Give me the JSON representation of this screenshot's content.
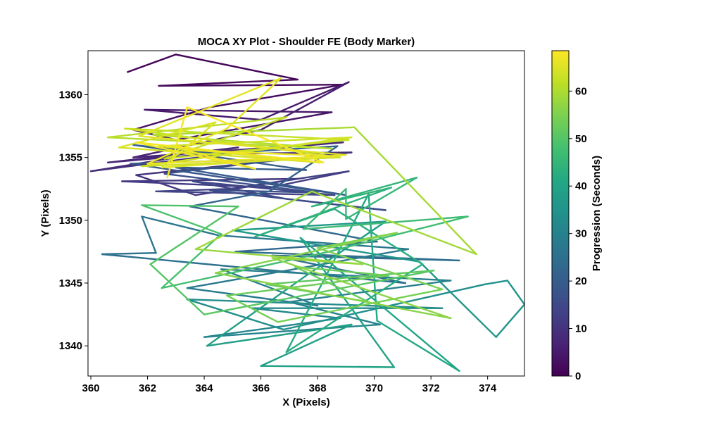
{
  "chart_data": {
    "type": "line",
    "title": "MOCA XY Plot - Shoulder FE (Body Marker)",
    "xlabel": "X (Pixels)",
    "ylabel": "Y (Pixels)",
    "colorbar_label": "Progression (Seconds)",
    "xlim": [
      359.9,
      375.3
    ],
    "ylim": [
      1337.6,
      1363.5
    ],
    "colorbar_range": [
      0,
      68.5
    ],
    "colormap": "viridis",
    "x_ticks": [
      360,
      362,
      364,
      366,
      368,
      370,
      372,
      374
    ],
    "x_tick_labels": [
      "360",
      "362",
      "364",
      "366",
      "368",
      "370",
      "372",
      "374"
    ],
    "y_ticks": [
      1340,
      1345,
      1350,
      1355,
      1360
    ],
    "y_tick_labels": [
      "1340",
      "1345",
      "1350",
      "1355",
      "1360"
    ],
    "colorbar_ticks": [
      0,
      10,
      20,
      30,
      40,
      50,
      60
    ],
    "colorbar_tick_labels": [
      "0",
      "10",
      "20",
      "30",
      "40",
      "50",
      "60"
    ],
    "grid": false,
    "series": [
      {
        "points": [
          [
            361.3,
            1361.8
          ],
          [
            363.0,
            1363.2
          ],
          [
            367.3,
            1361.2
          ],
          [
            362.4,
            1360.7
          ],
          [
            368.9,
            1360.8
          ],
          [
            364.2,
            1359.0
          ],
          [
            361.5,
            1357.2
          ],
          [
            363.0,
            1356.4
          ],
          [
            368.5,
            1358.6
          ],
          [
            361.9,
            1358.8
          ],
          [
            366.0,
            1358.0
          ],
          [
            369.1,
            1361.0
          ],
          [
            366.0,
            1357.2
          ],
          [
            361.5,
            1355.0
          ],
          [
            368.9,
            1356.2
          ],
          [
            360.6,
            1354.6
          ],
          [
            365.2,
            1355.8
          ],
          [
            360.0,
            1353.9
          ],
          [
            364.8,
            1355.3
          ],
          [
            369.2,
            1355.4
          ],
          [
            361.6,
            1353.6
          ],
          [
            363.7,
            1352.0
          ],
          [
            367.3,
            1353.3
          ],
          [
            361.1,
            1353.1
          ],
          [
            366.3,
            1352.6
          ],
          [
            369.1,
            1353.9
          ],
          [
            364.9,
            1352.5
          ],
          [
            362.3,
            1352.3
          ],
          [
            368.6,
            1352.0
          ],
          [
            363.6,
            1353.1
          ],
          [
            366.9,
            1351.7
          ],
          [
            370.4,
            1350.8
          ],
          [
            364.2,
            1352.4
          ],
          [
            368.0,
            1352.2
          ],
          [
            362.6,
            1353.7
          ],
          [
            367.0,
            1354.9
          ],
          [
            361.4,
            1354.5
          ],
          [
            365.6,
            1353.1
          ],
          [
            369.0,
            1352.0
          ],
          [
            363.0,
            1354.2
          ],
          [
            367.6,
            1354.0
          ],
          [
            361.5,
            1356.0
          ],
          [
            364.4,
            1355.3
          ],
          [
            368.7,
            1355.9
          ]
        ],
        "time": [
          0,
          0.5,
          1,
          1.5,
          2,
          2.5,
          3,
          3.5,
          4,
          4.5,
          5,
          5.5,
          6,
          6.5,
          7,
          7.5,
          8,
          8.5,
          9,
          9.5,
          10,
          10.5,
          11,
          11.5,
          12,
          12.5,
          13,
          13.5,
          14,
          14.5,
          15,
          15.5,
          16,
          16.5,
          17,
          17.5,
          18,
          18.5,
          19,
          19.5,
          20,
          20.5,
          21,
          21.5
        ]
      },
      {
        "points": [
          [
            366.3,
            1352.3
          ],
          [
            363.5,
            1351.1
          ],
          [
            370.1,
            1348.3
          ],
          [
            365.1,
            1347.5
          ],
          [
            373.0,
            1346.8
          ],
          [
            366.4,
            1347.2
          ],
          [
            371.1,
            1345.0
          ],
          [
            360.4,
            1347.3
          ],
          [
            362.3,
            1347.4
          ],
          [
            361.8,
            1350.3
          ],
          [
            364.5,
            1348.8
          ],
          [
            371.2,
            1347.7
          ],
          [
            363.4,
            1344.6
          ],
          [
            368.0,
            1343.2
          ],
          [
            364.6,
            1346.1
          ],
          [
            372.7,
            1345.2
          ],
          [
            367.0,
            1343.5
          ],
          [
            370.2,
            1341.7
          ],
          [
            364.0,
            1340.7
          ],
          [
            368.8,
            1342.2
          ],
          [
            365.7,
            1343.0
          ],
          [
            372.4,
            1343.0
          ],
          [
            363.4,
            1343.7
          ],
          [
            366.8,
            1341.3
          ],
          [
            373.9,
            1344.9
          ],
          [
            374.7,
            1345.2
          ],
          [
            375.3,
            1343.3
          ],
          [
            374.3,
            1340.7
          ],
          [
            371.6,
            1346.7
          ],
          [
            365.0,
            1349.2
          ],
          [
            370.4,
            1349.9
          ],
          [
            367.6,
            1345.6
          ],
          [
            364.1,
            1340.0
          ],
          [
            369.2,
            1341.7
          ],
          [
            366.0,
            1338.4
          ],
          [
            370.7,
            1338.3
          ],
          [
            367.4,
            1348.6
          ],
          [
            373.0,
            1338.0
          ],
          [
            370.1,
            1342.0
          ],
          [
            369.8,
            1352.1
          ],
          [
            366.9,
            1339.5
          ],
          [
            371.7,
            1346.5
          ],
          [
            368.6,
            1350.9
          ],
          [
            365.8,
            1348.7
          ],
          [
            370.6,
            1352.6
          ],
          [
            367.8,
            1351.1
          ],
          [
            371.5,
            1353.4
          ],
          [
            369.0,
            1350.1
          ]
        ],
        "time": [
          22,
          22.5,
          23,
          23.5,
          24,
          24.5,
          25,
          25.5,
          26,
          26.5,
          27,
          27.5,
          28,
          28.5,
          29,
          29.5,
          30,
          30.5,
          31,
          31.5,
          32,
          32.5,
          33,
          33.5,
          34,
          34.5,
          35,
          35.5,
          36,
          36.5,
          37,
          37.5,
          38,
          38.5,
          39,
          39.5,
          40,
          40.5,
          41,
          41.5,
          42,
          42.5,
          43,
          43.5,
          44,
          44.5,
          45,
          45.5
        ]
      },
      {
        "points": [
          [
            369.0,
            1352.5
          ],
          [
            367.5,
            1349.3
          ],
          [
            373.3,
            1350.3
          ],
          [
            368.4,
            1347.5
          ],
          [
            362.5,
            1344.6
          ],
          [
            364.6,
            1348.9
          ],
          [
            361.8,
            1351.2
          ],
          [
            365.2,
            1351.1
          ],
          [
            362.1,
            1346.5
          ],
          [
            364.0,
            1342.5
          ],
          [
            372.1,
            1346.0
          ],
          [
            366.2,
            1344.9
          ],
          [
            369.8,
            1343.5
          ],
          [
            367.2,
            1346.3
          ],
          [
            370.5,
            1345.6
          ],
          [
            364.8,
            1344.0
          ],
          [
            366.6,
            1341.9
          ],
          [
            372.4,
            1344.5
          ],
          [
            368.0,
            1347.8
          ],
          [
            370.8,
            1349.0
          ],
          [
            364.4,
            1345.8
          ],
          [
            372.7,
            1342.2
          ],
          [
            366.4,
            1347.0
          ],
          [
            369.6,
            1346.5
          ],
          [
            363.7,
            1347.7
          ],
          [
            367.8,
            1352.3
          ],
          [
            373.6,
            1347.3
          ],
          [
            369.3,
            1357.4
          ],
          [
            362.2,
            1356.8
          ],
          [
            368.5,
            1355.7
          ],
          [
            360.6,
            1356.6
          ],
          [
            366.9,
            1358.2
          ],
          [
            362.6,
            1354.9
          ],
          [
            369.1,
            1356.4
          ]
        ],
        "time": [
          46,
          46.5,
          47,
          47.5,
          48,
          48.5,
          49,
          49.5,
          50,
          50.5,
          51,
          51.5,
          52,
          52.5,
          53,
          53.5,
          54,
          54.5,
          55,
          55.5,
          56,
          56.5,
          57,
          57.5,
          58,
          58.5,
          59,
          59.5,
          60,
          60.5,
          61,
          61.5,
          62,
          62.5
        ]
      },
      {
        "points": [
          [
            361.2,
            1357.3
          ],
          [
            368.8,
            1355.0
          ],
          [
            361.8,
            1354.3
          ],
          [
            369.2,
            1356.6
          ],
          [
            362.4,
            1355.9
          ],
          [
            368.1,
            1354.6
          ],
          [
            361.0,
            1355.8
          ],
          [
            364.4,
            1357.8
          ],
          [
            362.5,
            1354.2
          ],
          [
            369.0,
            1355.2
          ],
          [
            361.7,
            1356.7
          ],
          [
            366.7,
            1361.3
          ],
          [
            364.8,
            1357.3
          ],
          [
            362.0,
            1354.5
          ],
          [
            368.6,
            1355.1
          ],
          [
            363.3,
            1355.6
          ],
          [
            365.8,
            1354.1
          ],
          [
            361.6,
            1356.2
          ],
          [
            368.2,
            1354.6
          ],
          [
            363.4,
            1359.0
          ],
          [
            362.7,
            1353.4
          ]
        ],
        "time": [
          63,
          63.25,
          63.5,
          63.75,
          64,
          64.25,
          64.5,
          64.75,
          65,
          65.25,
          65.5,
          65.75,
          66,
          66.25,
          66.5,
          66.75,
          67,
          67.25,
          67.5,
          67.75,
          68
        ]
      }
    ]
  }
}
